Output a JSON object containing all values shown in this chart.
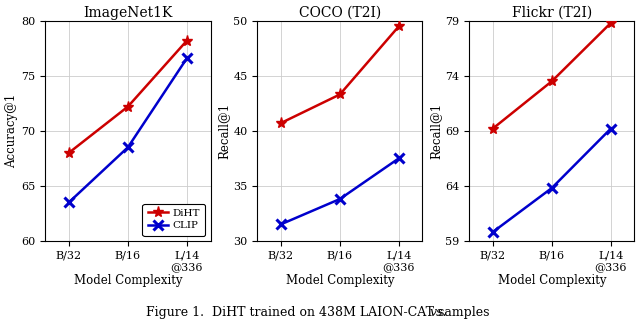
{
  "charts": [
    {
      "title": "ImageNet1K",
      "ylabel": "Accuracy@1",
      "xlabel": "Model Complexity",
      "xticks": [
        "B/32",
        "B/16",
        "L/14\n@336"
      ],
      "ylim": [
        60,
        80
      ],
      "yticks": [
        60,
        65,
        70,
        75,
        80
      ],
      "diht": [
        68.0,
        72.2,
        78.2
      ],
      "clip": [
        63.5,
        68.5,
        76.6
      ]
    },
    {
      "title": "COCO (T2I)",
      "ylabel": "Recall@1",
      "xlabel": "Model Complexity",
      "xticks": [
        "B/32",
        "B/16",
        "L/14\n@336"
      ],
      "ylim": [
        30,
        50
      ],
      "yticks": [
        30,
        35,
        40,
        45,
        50
      ],
      "diht": [
        40.7,
        43.3,
        49.5
      ],
      "clip": [
        31.5,
        33.8,
        37.5
      ]
    },
    {
      "title": "Flickr (T2I)",
      "ylabel": "Recall@1",
      "xlabel": "Model Complexity",
      "xticks": [
        "B/32",
        "B/16",
        "L/14\n@336"
      ],
      "ylim": [
        59,
        79
      ],
      "yticks": [
        59,
        64,
        69,
        74,
        79
      ],
      "diht": [
        69.2,
        73.5,
        78.8
      ],
      "clip": [
        59.8,
        63.8,
        69.2
      ]
    }
  ],
  "legend_labels": [
    "DiHT",
    "CLIP"
  ],
  "diht_color": "#cc0000",
  "clip_color": "#0000cc",
  "marker_diht": "*",
  "marker_clip": "x",
  "linewidth": 1.8,
  "markersize_diht": 8,
  "markersize_clip": 7,
  "caption_regular": "Figure 1.  DiHT trained on 438M LAION-CAT samples ",
  "caption_italic": "vs.",
  "background_color": "#ffffff",
  "grid": true,
  "title_fontsize": 10,
  "label_fontsize": 8.5,
  "tick_fontsize": 8,
  "legend_fontsize": 7.5
}
